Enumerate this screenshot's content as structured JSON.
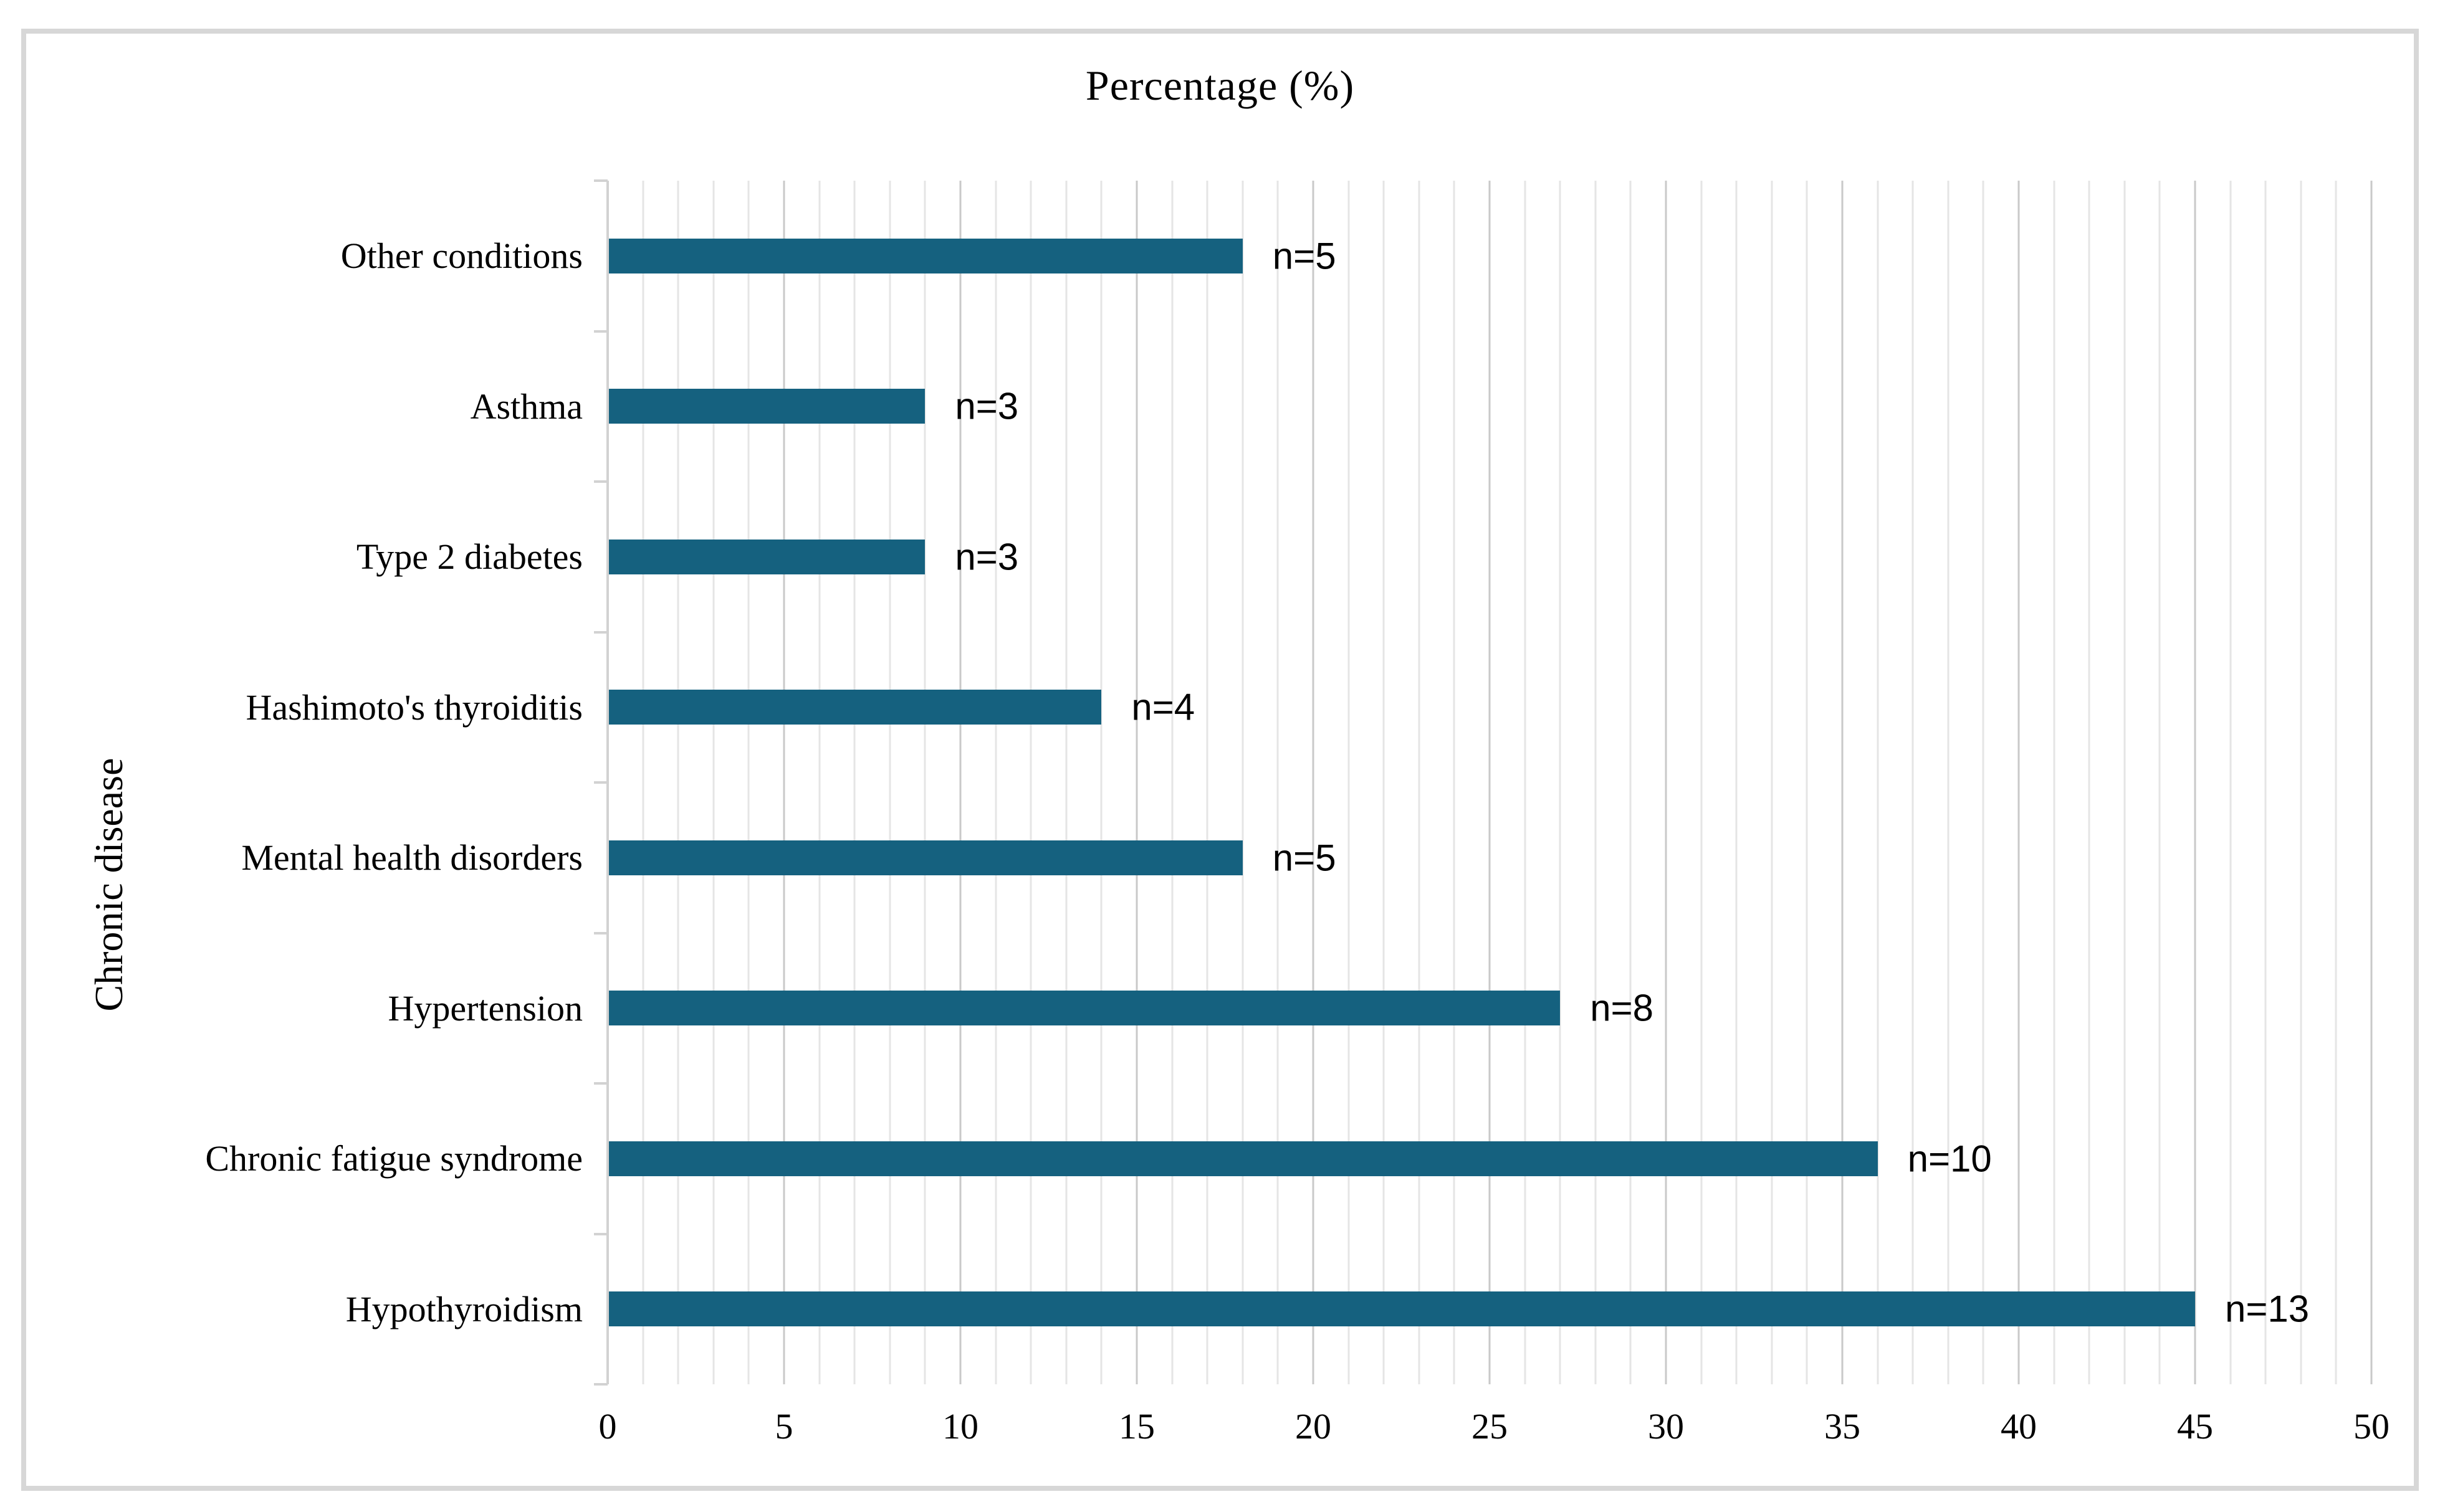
{
  "title": "Percentage (%)",
  "y_axis_title": "Chronic disease",
  "colors": {
    "bar": "#15617f",
    "minor_gridline": "#e5e5e5",
    "major_gridline": "#c9c9c9",
    "axis_line": "#d2d2d2",
    "figure_border": "#d7d7d7",
    "text": "#000000"
  },
  "chart_data": {
    "type": "bar",
    "orientation": "horizontal",
    "title": "Percentage (%)",
    "xlabel": "Percentage (%)",
    "ylabel": "Chronic disease",
    "categories": [
      "Other conditions",
      "Asthma",
      "Type 2 diabetes",
      "Hashimoto's thyroiditis",
      "Mental health disorders",
      "Hypertension",
      "Chronic fatigue syndrome",
      "Hypothyroidism"
    ],
    "values": [
      18,
      9,
      9,
      14,
      18,
      27,
      36,
      45
    ],
    "data_labels": [
      "n=5",
      "n=3",
      "n=3",
      "n=4",
      "n=5",
      "n=8",
      "n=10",
      "n=13"
    ],
    "counts": [
      5,
      3,
      3,
      4,
      5,
      8,
      10,
      13
    ],
    "xlim": [
      0,
      50
    ],
    "x_ticks": [
      0,
      5,
      10,
      15,
      20,
      25,
      30,
      35,
      40,
      45,
      50
    ],
    "minor_grid_step": 1,
    "major_grid_step": 5,
    "grid": "on",
    "legend": "none",
    "bar_color": "#15617f"
  }
}
